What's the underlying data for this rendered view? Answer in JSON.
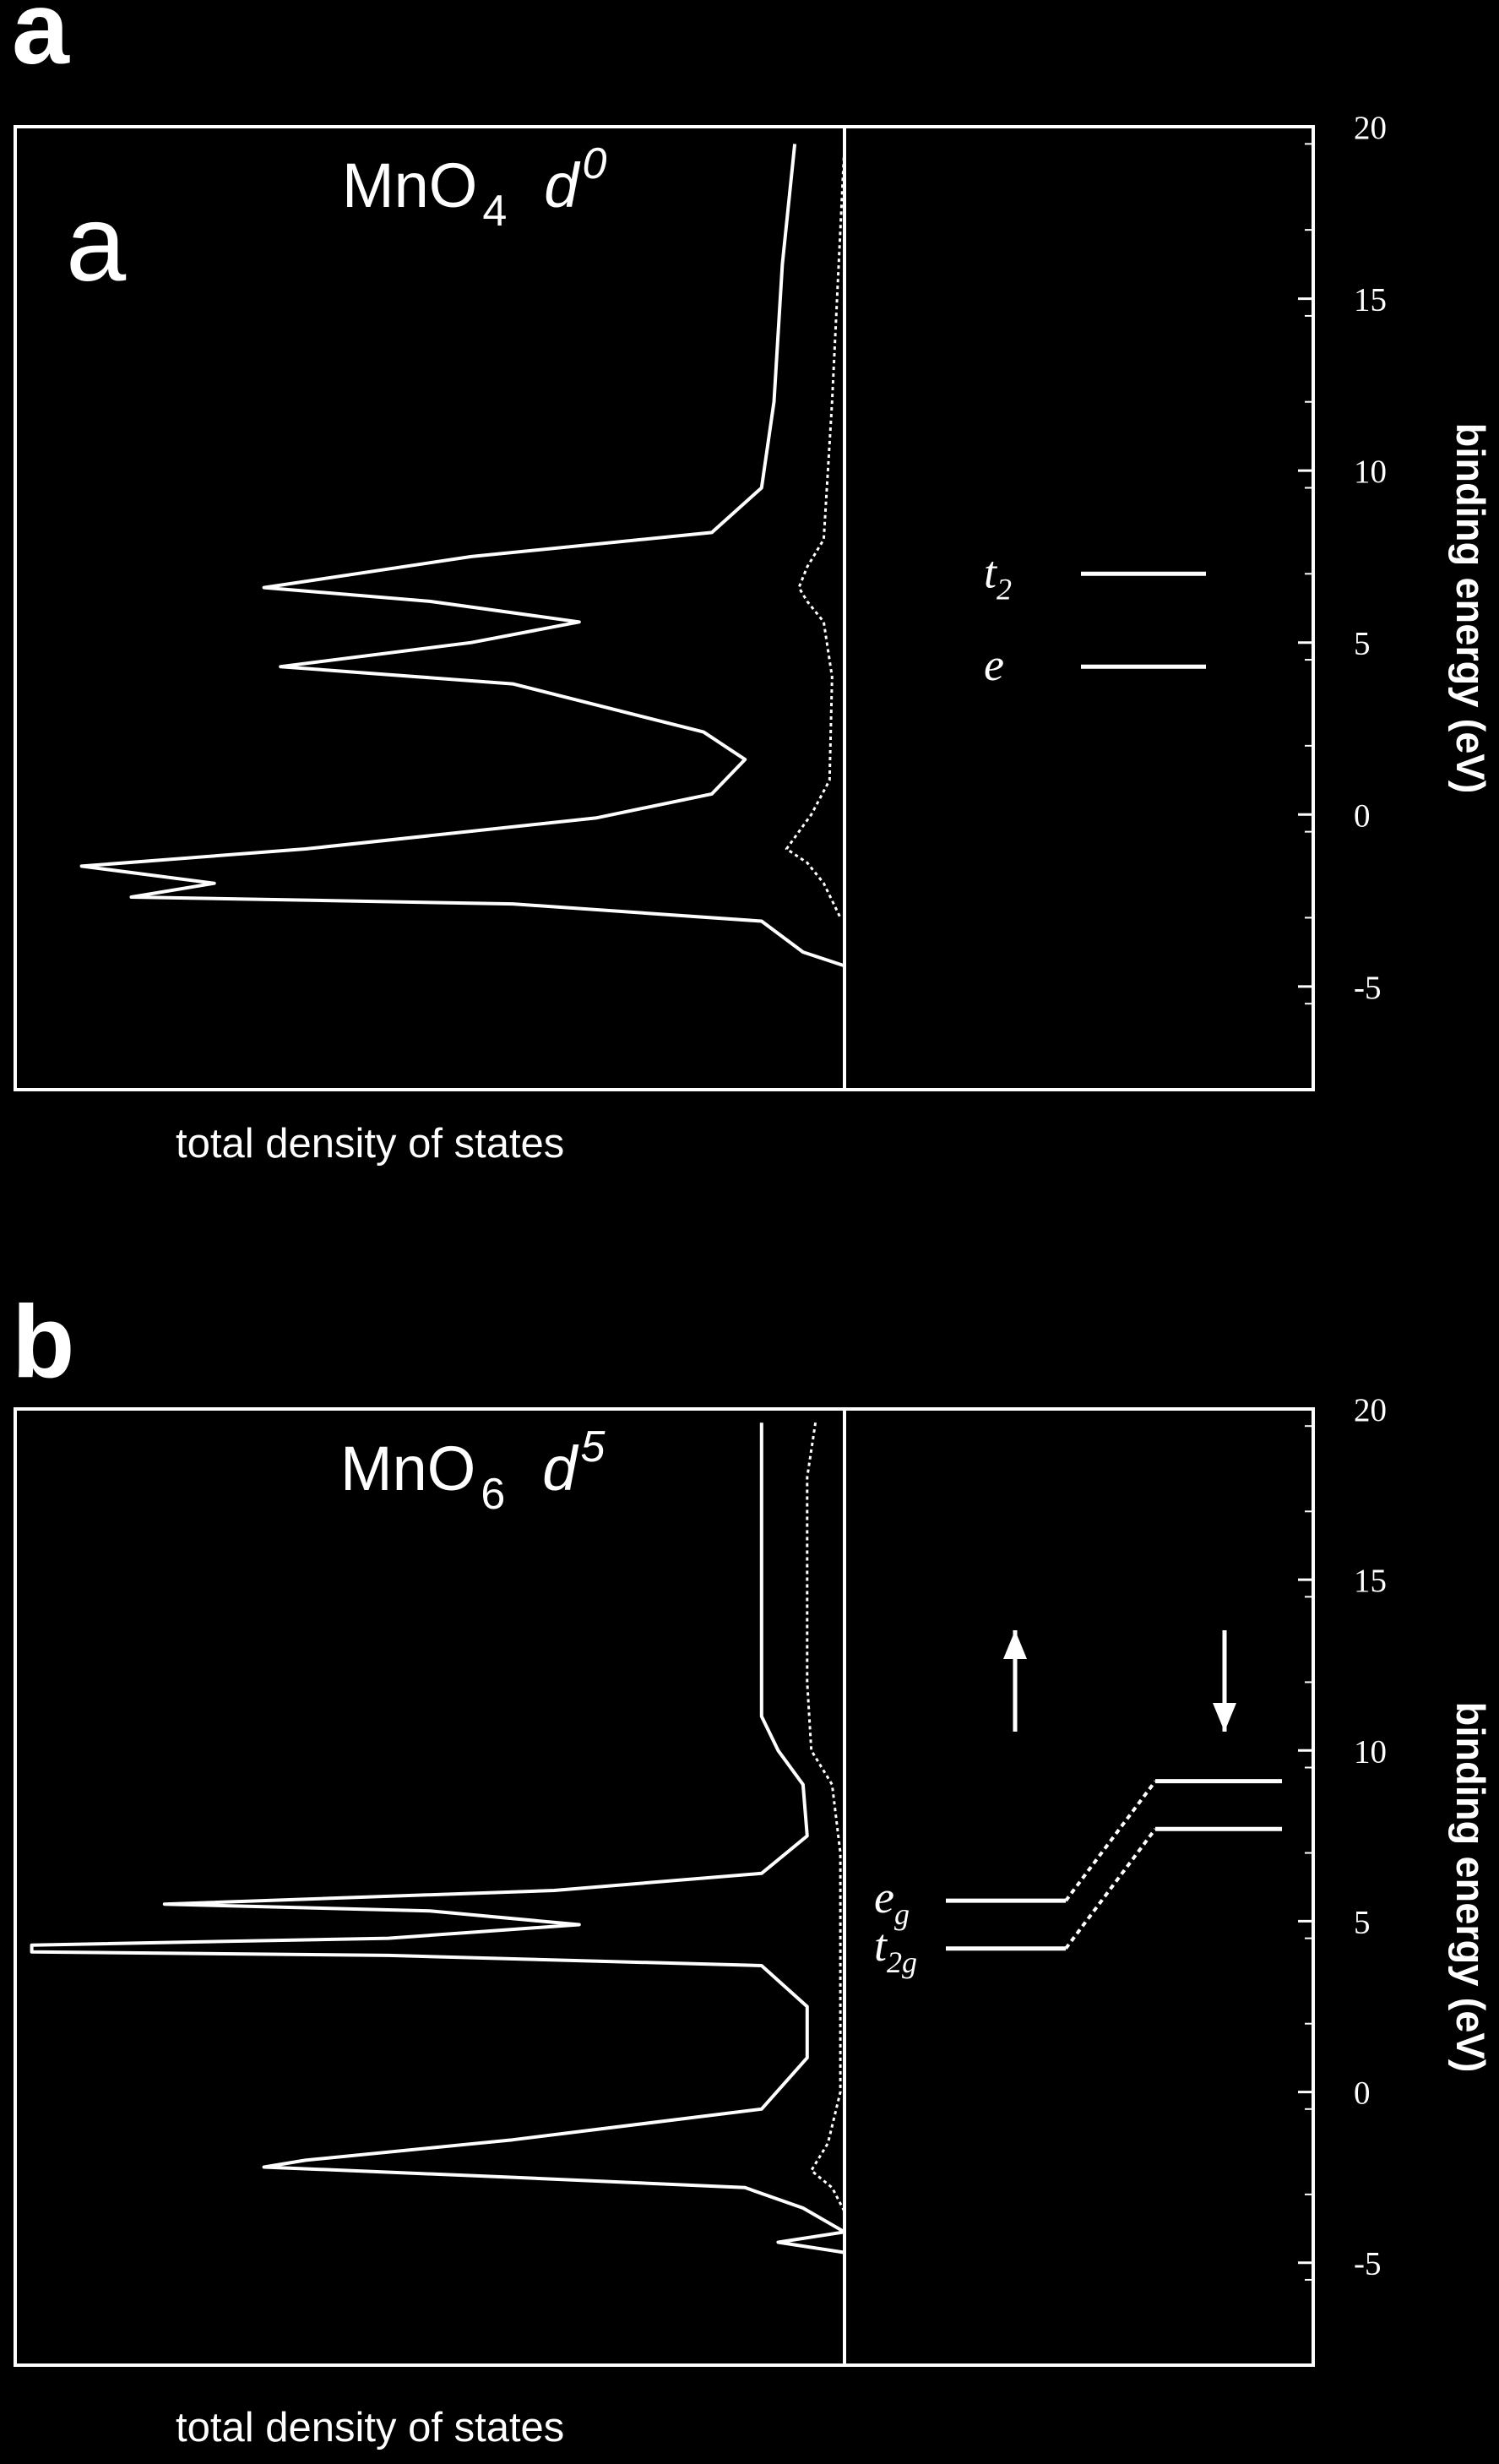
{
  "panels": [
    {
      "letter": "a",
      "inset_letter": "a",
      "title": {
        "species": "MnO",
        "subscript": "4",
        "config": "d",
        "superscript": "0"
      },
      "chart_data": {
        "type": "line",
        "xlabel": "total density of states",
        "ylabel": "binding energy (eV)",
        "ylim": [
          -8,
          20
        ],
        "yticks": [
          20,
          15,
          10,
          5,
          0,
          -5
        ],
        "ytick_labels": [
          "20",
          "15",
          "10",
          "5",
          "0",
          "-5"
        ],
        "series": [
          {
            "style": "solid",
            "points": [
              [
                0.94,
                19.5
              ],
              [
                0.925,
                16
              ],
              [
                0.915,
                12
              ],
              [
                0.9,
                9.5
              ],
              [
                0.84,
                8.2
              ],
              [
                0.55,
                7.5
              ],
              [
                0.3,
                6.6
              ],
              [
                0.5,
                6.2
              ],
              [
                0.68,
                5.6
              ],
              [
                0.55,
                5
              ],
              [
                0.32,
                4.3
              ],
              [
                0.6,
                3.8
              ],
              [
                0.83,
                2.4
              ],
              [
                0.88,
                1.6
              ],
              [
                0.84,
                0.6
              ],
              [
                0.7,
                -0.1
              ],
              [
                0.35,
                -1
              ],
              [
                0.08,
                -1.5
              ],
              [
                0.24,
                -2
              ],
              [
                0.14,
                -2.4
              ],
              [
                0.6,
                -2.6
              ],
              [
                0.9,
                -3.1
              ],
              [
                0.95,
                -4
              ],
              [
                1.0,
                -4.4
              ]
            ]
          },
          {
            "style": "dotted",
            "points": [
              [
                1.0,
                19.5
              ],
              [
                0.985,
                12
              ],
              [
                0.975,
                8
              ],
              [
                0.955,
                7.2
              ],
              [
                0.945,
                6.6
              ],
              [
                0.955,
                6.2
              ],
              [
                0.975,
                5.6
              ],
              [
                0.985,
                4
              ],
              [
                0.982,
                1
              ],
              [
                0.96,
                0
              ],
              [
                0.93,
                -1
              ],
              [
                0.955,
                -1.4
              ],
              [
                0.975,
                -2
              ],
              [
                0.995,
                -3
              ]
            ]
          }
        ],
        "levels": [
          {
            "label": "t",
            "sub": "2",
            "energy": 7.0
          },
          {
            "label": "e",
            "sub": "",
            "energy": 4.3
          }
        ]
      }
    },
    {
      "letter": "b",
      "title": {
        "species": "MnO",
        "subscript": "6",
        "config": "d",
        "superscript": "5"
      },
      "chart_data": {
        "type": "line",
        "xlabel": "total density of states",
        "ylabel": "binding energy (eV)",
        "ylim": [
          -8,
          20
        ],
        "yticks": [
          20,
          15,
          10,
          5,
          0,
          -5
        ],
        "ytick_labels": [
          "20",
          "15",
          "10",
          "5",
          "0",
          "-5"
        ],
        "series": [
          {
            "style": "solid",
            "points": [
              [
                0.9,
                19.6
              ],
              [
                0.9,
                15
              ],
              [
                0.9,
                11
              ],
              [
                0.92,
                10
              ],
              [
                0.95,
                9
              ],
              [
                0.955,
                7.5
              ],
              [
                0.9,
                6.4
              ],
              [
                0.65,
                5.9
              ],
              [
                0.18,
                5.5
              ],
              [
                0.5,
                5.3
              ],
              [
                0.68,
                4.9
              ],
              [
                0.45,
                4.5
              ],
              [
                0.02,
                4.3
              ],
              [
                0.02,
                4.1
              ],
              [
                0.45,
                4.0
              ],
              [
                0.9,
                3.7
              ],
              [
                0.955,
                2.5
              ],
              [
                0.955,
                1.0
              ],
              [
                0.9,
                -0.5
              ],
              [
                0.6,
                -1.4
              ],
              [
                0.35,
                -2.0
              ],
              [
                0.3,
                -2.2
              ],
              [
                0.6,
                -2.5
              ],
              [
                0.88,
                -2.8
              ],
              [
                0.95,
                -3.4
              ],
              [
                1.0,
                -4.1
              ],
              [
                0.92,
                -4.4
              ],
              [
                1.0,
                -4.7
              ]
            ]
          },
          {
            "style": "dotted",
            "points": [
              [
                0.965,
                19.6
              ],
              [
                0.955,
                18
              ],
              [
                0.955,
                12
              ],
              [
                0.96,
                10
              ],
              [
                0.985,
                9
              ],
              [
                0.995,
                7
              ],
              [
                0.995,
                0
              ],
              [
                0.98,
                -1.5
              ],
              [
                0.96,
                -2.3
              ],
              [
                0.985,
                -2.8
              ],
              [
                1.0,
                -3.5
              ]
            ]
          }
        ],
        "levels": [
          {
            "label": "e",
            "sub": "g",
            "energy": 5.6
          },
          {
            "label": "t",
            "sub": "2g",
            "energy": 4.2
          }
        ],
        "levels_minority": [
          {
            "energy": 9.1
          },
          {
            "energy": 7.7
          }
        ],
        "spin_arrows": [
          {
            "direction": "up"
          },
          {
            "direction": "down"
          }
        ]
      }
    }
  ]
}
